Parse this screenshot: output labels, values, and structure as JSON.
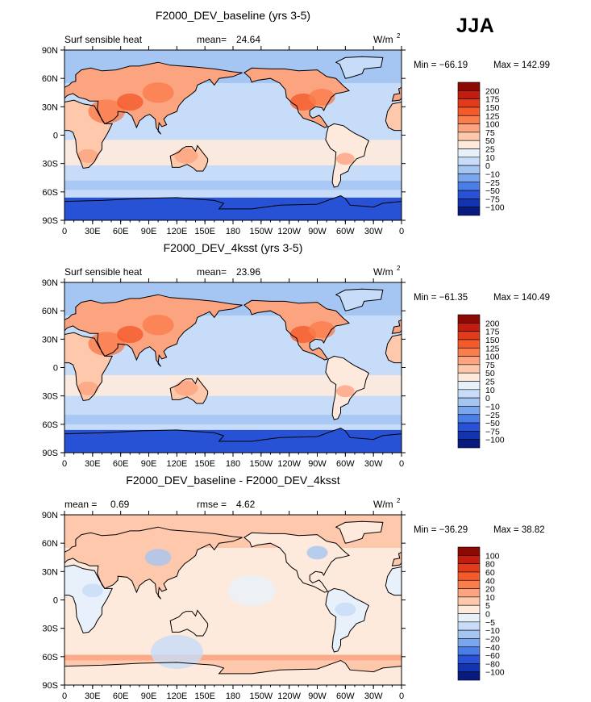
{
  "season": "JJA",
  "chart_data": [
    {
      "type": "contour_map",
      "title": "F2000_DEV_baseline (yrs 3-5)",
      "left_label": "Surf sensible heat",
      "stat_label": "mean=",
      "stat_value": "24.64",
      "units_base": "W/m",
      "units_exp": "2",
      "min_text": "Min = −66.19",
      "max_text": "Max = 142.99",
      "xticks": [
        "0",
        "30E",
        "60E",
        "90E",
        "120E",
        "150E",
        "180",
        "150W",
        "120W",
        "90W",
        "60W",
        "30W",
        "0"
      ],
      "yticks": [
        "90N",
        "60N",
        "30N",
        "0",
        "30S",
        "60S",
        "90S"
      ],
      "levels": [
        "200",
        "175",
        "150",
        "125",
        "100",
        "75",
        "50",
        "25",
        "10",
        "0",
        "−10",
        "−25",
        "−50",
        "−75",
        "−100"
      ],
      "colors": [
        "#8c0a05",
        "#c21d0e",
        "#e23b1b",
        "#f45a2c",
        "#fa7d4c",
        "#fca37f",
        "#fec8ac",
        "#feeadc",
        "#e8f1fb",
        "#c7dcf8",
        "#a5c5f3",
        "#7aa6ee",
        "#4a7de6",
        "#2852d6",
        "#1234b0",
        "#061a80"
      ]
    },
    {
      "type": "contour_map",
      "title": "F2000_DEV_4ksst (yrs 3-5)",
      "left_label": "Surf sensible heat",
      "stat_label": "mean=",
      "stat_value": "23.96",
      "units_base": "W/m",
      "units_exp": "2",
      "min_text": "Min = −61.35",
      "max_text": "Max = 140.49",
      "xticks": [
        "0",
        "30E",
        "60E",
        "90E",
        "120E",
        "150E",
        "180",
        "150W",
        "120W",
        "90W",
        "60W",
        "30W",
        "0"
      ],
      "yticks": [
        "90N",
        "60N",
        "30N",
        "0",
        "30S",
        "60S",
        "90S"
      ],
      "levels": [
        "200",
        "175",
        "150",
        "125",
        "100",
        "75",
        "50",
        "25",
        "10",
        "0",
        "−10",
        "−25",
        "−50",
        "−75",
        "−100"
      ],
      "colors": [
        "#8c0a05",
        "#c21d0e",
        "#e23b1b",
        "#f45a2c",
        "#fa7d4c",
        "#fca37f",
        "#fec8ac",
        "#feeadc",
        "#e8f1fb",
        "#c7dcf8",
        "#a5c5f3",
        "#7aa6ee",
        "#4a7de6",
        "#2852d6",
        "#1234b0",
        "#061a80"
      ]
    },
    {
      "type": "contour_map",
      "title": "F2000_DEV_baseline - F2000_DEV_4ksst",
      "left_label": "mean =",
      "left_value": "0.69",
      "stat_label": "rmse =",
      "stat_value": "4.62",
      "units_base": "W/m",
      "units_exp": "2",
      "min_text": "Min = −36.29",
      "max_text": "Max =  38.82",
      "xticks": [
        "0",
        "30E",
        "60E",
        "90E",
        "120E",
        "150E",
        "180",
        "150W",
        "120W",
        "90W",
        "60W",
        "30W",
        "0"
      ],
      "yticks": [
        "90N",
        "60N",
        "30N",
        "0",
        "30S",
        "60S",
        "90S"
      ],
      "levels": [
        "100",
        "80",
        "60",
        "40",
        "20",
        "10",
        "5",
        "0",
        "−5",
        "−10",
        "−20",
        "−40",
        "−60",
        "−80",
        "−100"
      ],
      "colors": [
        "#8c0a05",
        "#c21d0e",
        "#e23b1b",
        "#f45a2c",
        "#fa7d4c",
        "#fca37f",
        "#fec8ac",
        "#feeadc",
        "#e8f1fb",
        "#c7dcf8",
        "#a5c5f3",
        "#7aa6ee",
        "#4a7de6",
        "#2852d6",
        "#1234b0",
        "#061a80"
      ]
    }
  ]
}
